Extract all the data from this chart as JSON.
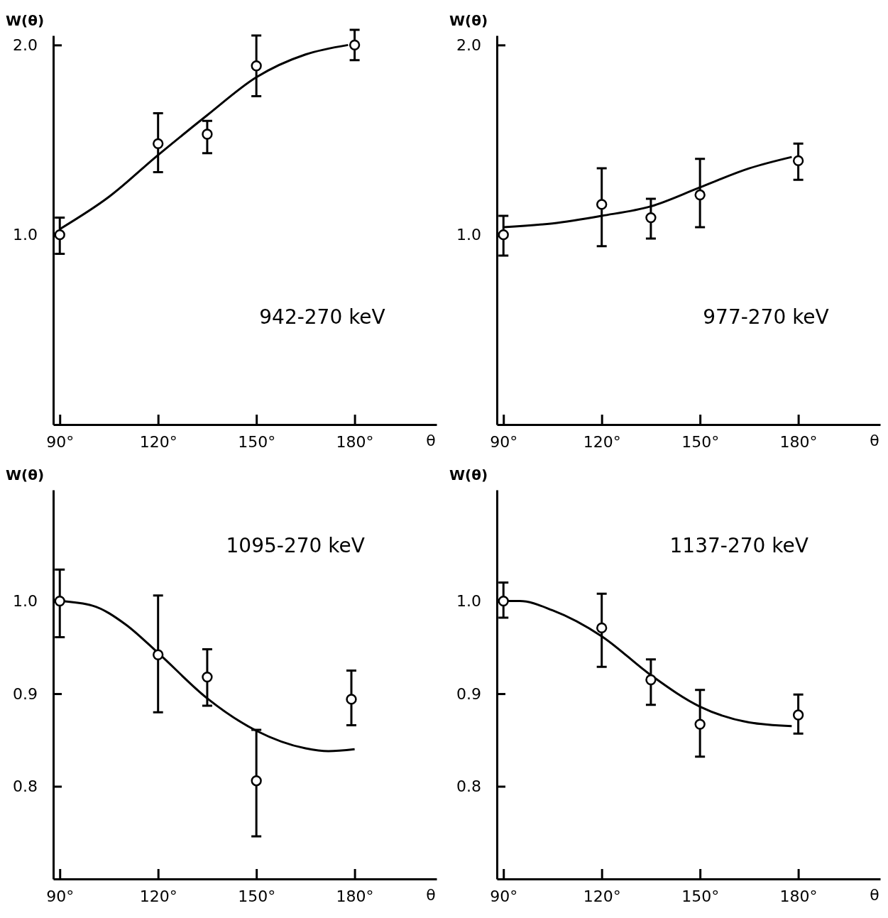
{
  "chart_data": [
    {
      "type": "scatter",
      "xlabel": "θ",
      "ylabel": "W(θ)",
      "annotations": [
        "942-270 keV"
      ],
      "xlim": [
        88,
        205
      ],
      "ylim": [
        0,
        2.05
      ],
      "xticks": [
        {
          "value": 90,
          "label": "90°"
        },
        {
          "value": 120,
          "label": "120°"
        },
        {
          "value": 150,
          "label": "150°"
        },
        {
          "value": 180,
          "label": "180°"
        }
      ],
      "yticks": [
        {
          "value": 1,
          "label": "1.0"
        },
        {
          "value": 2,
          "label": "2.0"
        }
      ],
      "series": [
        {
          "type": "line",
          "color": "#000000",
          "x": [
            90,
            105,
            120,
            135,
            150,
            165,
            178
          ],
          "values": [
            1.03,
            1.2,
            1.42,
            1.63,
            1.83,
            1.95,
            2.0
          ]
        },
        {
          "color": "#000000",
          "marker": "circle",
          "x": [
            90,
            120,
            135,
            150,
            180
          ],
          "values": [
            1.0,
            1.48,
            1.53,
            1.89,
            2.0
          ],
          "errors": [
            [
              0.9,
              1.09
            ],
            [
              1.33,
              1.64
            ],
            [
              1.43,
              1.6
            ],
            [
              1.73,
              2.05
            ],
            [
              1.92,
              2.08
            ]
          ]
        }
      ]
    },
    {
      "type": "scatter",
      "xlabel": "θ",
      "ylabel": "W(θ)",
      "annotations": [
        "977-270 keV"
      ],
      "xlim": [
        88,
        205
      ],
      "ylim": [
        0,
        2.05
      ],
      "xticks": [
        {
          "value": 90,
          "label": "90°"
        },
        {
          "value": 120,
          "label": "120°"
        },
        {
          "value": 150,
          "label": "150°"
        },
        {
          "value": 180,
          "label": "180°"
        }
      ],
      "yticks": [
        {
          "value": 1,
          "label": "1.0"
        },
        {
          "value": 2,
          "label": "2.0"
        }
      ],
      "series": [
        {
          "type": "line",
          "color": "#000000",
          "x": [
            90,
            105,
            120,
            135,
            150,
            165,
            178
          ],
          "values": [
            1.04,
            1.06,
            1.1,
            1.15,
            1.25,
            1.35,
            1.41
          ]
        },
        {
          "color": "#000000",
          "marker": "circle",
          "x": [
            90,
            120,
            135,
            150,
            180
          ],
          "values": [
            1.0,
            1.16,
            1.09,
            1.21,
            1.39
          ],
          "errors": [
            [
              0.89,
              1.1
            ],
            [
              0.94,
              1.35
            ],
            [
              0.98,
              1.19
            ],
            [
              1.04,
              1.4
            ],
            [
              1.29,
              1.48
            ]
          ]
        }
      ]
    },
    {
      "type": "scatter",
      "xlabel": "θ",
      "ylabel": "W(θ)",
      "annotations": [
        "1095-270 keV"
      ],
      "xlim": [
        88,
        205
      ],
      "ylim": [
        0.7,
        1.12
      ],
      "xticks": [
        {
          "value": 90,
          "label": "90°"
        },
        {
          "value": 120,
          "label": "120°"
        },
        {
          "value": 150,
          "label": "150°"
        },
        {
          "value": 180,
          "label": "180°"
        }
      ],
      "yticks": [
        {
          "value": 0.8,
          "label": "0.8"
        },
        {
          "value": 0.9,
          "label": "0.9"
        },
        {
          "value": 1,
          "label": "1.0"
        }
      ],
      "series": [
        {
          "type": "line",
          "color": "#000000",
          "x": [
            90,
            100,
            110,
            120,
            135,
            150,
            165,
            172,
            180
          ],
          "values": [
            1.0,
            0.995,
            0.975,
            0.944,
            0.895,
            0.86,
            0.841,
            0.838,
            0.84
          ]
        },
        {
          "color": "#000000",
          "marker": "circle",
          "x": [
            90,
            120,
            135,
            150,
            179
          ],
          "values": [
            1.0,
            0.942,
            0.918,
            0.806,
            0.894
          ],
          "errors": [
            [
              0.961,
              1.034
            ],
            [
              0.88,
              1.006
            ],
            [
              0.887,
              0.948
            ],
            [
              0.746,
              0.861
            ],
            [
              0.866,
              0.925
            ]
          ]
        }
      ]
    },
    {
      "type": "scatter",
      "xlabel": "θ",
      "ylabel": "W(θ)",
      "annotations": [
        "1137-270 keV"
      ],
      "xlim": [
        88,
        205
      ],
      "ylim": [
        0.7,
        1.12
      ],
      "xticks": [
        {
          "value": 90,
          "label": "90°"
        },
        {
          "value": 120,
          "label": "120°"
        },
        {
          "value": 150,
          "label": "150°"
        },
        {
          "value": 180,
          "label": "180°"
        }
      ],
      "yticks": [
        {
          "value": 0.8,
          "label": "0.8"
        },
        {
          "value": 0.9,
          "label": "0.9"
        },
        {
          "value": 1,
          "label": "1.0"
        }
      ],
      "series": [
        {
          "type": "line",
          "color": "#000000",
          "x": [
            90,
            95,
            105,
            120,
            135,
            150,
            165,
            178
          ],
          "values": [
            1.0,
            1.0,
            0.99,
            0.962,
            0.92,
            0.886,
            0.869,
            0.865
          ]
        },
        {
          "color": "#000000",
          "marker": "circle",
          "x": [
            90,
            120,
            135,
            150,
            180
          ],
          "values": [
            1.0,
            0.971,
            0.915,
            0.867,
            0.877
          ],
          "errors": [
            [
              0.982,
              1.02
            ],
            [
              0.929,
              1.008
            ],
            [
              0.888,
              0.937
            ],
            [
              0.832,
              0.904
            ],
            [
              0.857,
              0.899
            ]
          ]
        }
      ]
    }
  ]
}
